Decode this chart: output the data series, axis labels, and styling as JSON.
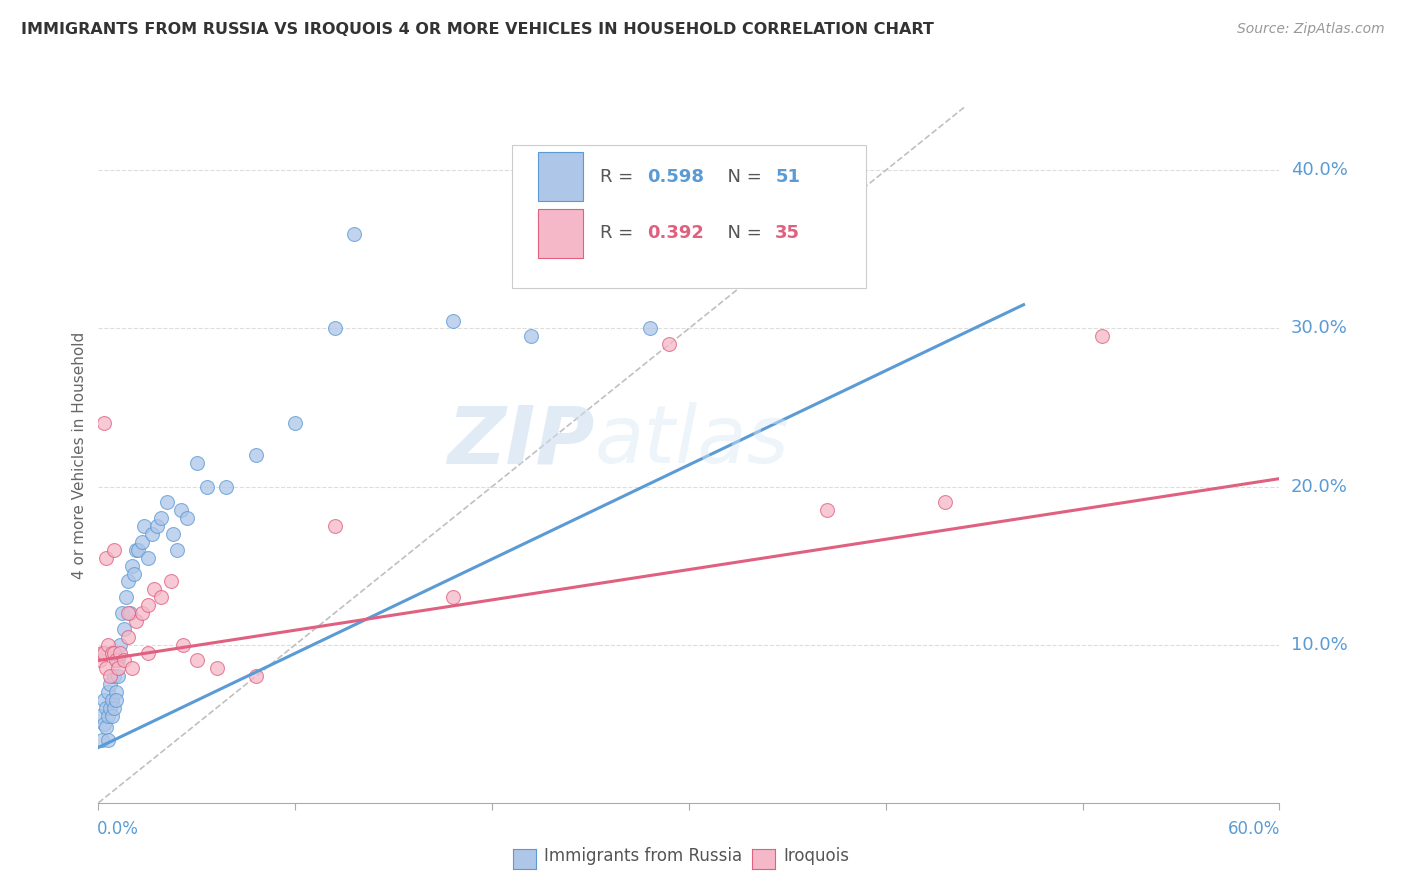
{
  "title": "IMMIGRANTS FROM RUSSIA VS IROQUOIS 4 OR MORE VEHICLES IN HOUSEHOLD CORRELATION CHART",
  "source": "Source: ZipAtlas.com",
  "ylabel": "4 or more Vehicles in Household",
  "right_yticks": [
    "40.0%",
    "30.0%",
    "20.0%",
    "10.0%"
  ],
  "right_ytick_vals": [
    0.4,
    0.3,
    0.2,
    0.1
  ],
  "xlim": [
    0.0,
    0.6
  ],
  "ylim": [
    0.0,
    0.44
  ],
  "blue_color": "#aec6e8",
  "pink_color": "#f4b8c8",
  "blue_line_color": "#5b9bd5",
  "pink_line_color": "#e06080",
  "diagonal_color": "#c0c0c0",
  "watermark_zip": "ZIP",
  "watermark_atlas": "atlas",
  "blue_scatter_x": [
    0.001,
    0.002,
    0.003,
    0.003,
    0.004,
    0.004,
    0.005,
    0.005,
    0.005,
    0.006,
    0.006,
    0.007,
    0.007,
    0.008,
    0.008,
    0.009,
    0.009,
    0.01,
    0.01,
    0.011,
    0.012,
    0.013,
    0.014,
    0.015,
    0.016,
    0.017,
    0.018,
    0.019,
    0.02,
    0.022,
    0.023,
    0.025,
    0.027,
    0.03,
    0.032,
    0.035,
    0.038,
    0.04,
    0.042,
    0.045,
    0.05,
    0.055,
    0.065,
    0.08,
    0.1,
    0.12,
    0.18,
    0.22,
    0.28,
    0.38,
    0.13
  ],
  "blue_scatter_y": [
    0.055,
    0.04,
    0.05,
    0.065,
    0.048,
    0.06,
    0.055,
    0.07,
    0.04,
    0.06,
    0.075,
    0.055,
    0.065,
    0.06,
    0.08,
    0.07,
    0.065,
    0.08,
    0.09,
    0.1,
    0.12,
    0.11,
    0.13,
    0.14,
    0.12,
    0.15,
    0.145,
    0.16,
    0.16,
    0.165,
    0.175,
    0.155,
    0.17,
    0.175,
    0.18,
    0.19,
    0.17,
    0.16,
    0.185,
    0.18,
    0.215,
    0.2,
    0.2,
    0.22,
    0.24,
    0.3,
    0.305,
    0.295,
    0.3,
    0.35,
    0.36
  ],
  "pink_scatter_x": [
    0.001,
    0.002,
    0.003,
    0.004,
    0.005,
    0.006,
    0.007,
    0.008,
    0.009,
    0.01,
    0.011,
    0.013,
    0.015,
    0.017,
    0.019,
    0.022,
    0.025,
    0.028,
    0.032,
    0.037,
    0.043,
    0.05,
    0.06,
    0.08,
    0.12,
    0.18,
    0.29,
    0.37,
    0.43,
    0.51,
    0.003,
    0.004,
    0.008,
    0.015,
    0.025
  ],
  "pink_scatter_y": [
    0.09,
    0.095,
    0.095,
    0.085,
    0.1,
    0.08,
    0.095,
    0.095,
    0.09,
    0.085,
    0.095,
    0.09,
    0.105,
    0.085,
    0.115,
    0.12,
    0.095,
    0.135,
    0.13,
    0.14,
    0.1,
    0.09,
    0.085,
    0.08,
    0.175,
    0.13,
    0.29,
    0.185,
    0.19,
    0.295,
    0.24,
    0.155,
    0.16,
    0.12,
    0.125
  ],
  "blue_line_x": [
    0.0,
    0.47
  ],
  "blue_line_y": [
    0.035,
    0.315
  ],
  "pink_line_x": [
    0.0,
    0.6
  ],
  "pink_line_y": [
    0.09,
    0.205
  ],
  "diag_line_x": [
    0.0,
    0.44
  ],
  "diag_line_y": [
    0.0,
    0.44
  ]
}
